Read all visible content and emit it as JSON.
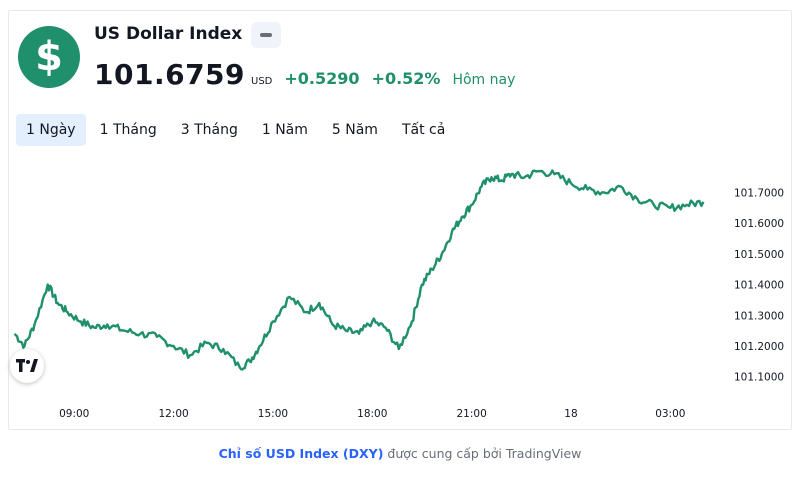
{
  "header": {
    "logo_symbol": "$",
    "logo_color": "#1f8f6c",
    "title": "US Dollar Index",
    "badge_icon": "minus-badge-icon",
    "price": "101.6759",
    "currency": "USD",
    "change_abs": "+0.5290",
    "change_pct": "+0.52%",
    "period_label": "Hôm nay",
    "positive_color": "#1f8f6c"
  },
  "tabs": [
    {
      "label": "1 Ngày",
      "active": true
    },
    {
      "label": "1 Tháng",
      "active": false
    },
    {
      "label": "3 Tháng",
      "active": false
    },
    {
      "label": "1 Năm",
      "active": false
    },
    {
      "label": "5 Năm",
      "active": false
    },
    {
      "label": "Tất cả",
      "active": false
    }
  ],
  "chart_data": {
    "type": "line",
    "line_color": "#1f8f6c",
    "x_ticks": [
      "09:00",
      "12:00",
      "15:00",
      "18:00",
      "21:00",
      "18",
      "03:00"
    ],
    "y_ticks": [
      "101.1000",
      "101.2000",
      "101.3000",
      "101.4000",
      "101.5000",
      "101.6000",
      "101.7000"
    ],
    "ylim": [
      101.1,
      101.7
    ],
    "x_hours": [
      7.2,
      7.5,
      7.8,
      8.2,
      8.5,
      8.8,
      9.2,
      9.6,
      10.0,
      10.5,
      11.0,
      11.5,
      12.0,
      12.5,
      13.0,
      13.5,
      14.0,
      14.3,
      14.6,
      15.0,
      15.5,
      16.0,
      16.4,
      16.8,
      17.2,
      17.6,
      18.0,
      18.4,
      18.8,
      19.2,
      19.5,
      19.8,
      20.1,
      20.4,
      20.7,
      21.0,
      21.3,
      21.6,
      21.9,
      22.2,
      22.6,
      23.0,
      23.5,
      24.0,
      24.5,
      25.0,
      25.5,
      26.0,
      26.5,
      27.0,
      27.5,
      28.0
    ],
    "values": [
      101.24,
      101.2,
      101.27,
      101.4,
      101.34,
      101.31,
      101.28,
      101.26,
      101.27,
      101.25,
      101.24,
      101.23,
      101.2,
      101.17,
      101.21,
      101.19,
      101.13,
      101.15,
      101.2,
      101.28,
      101.36,
      101.31,
      101.34,
      101.27,
      101.25,
      101.24,
      101.28,
      101.26,
      101.19,
      101.28,
      101.4,
      101.45,
      101.5,
      101.57,
      101.62,
      101.66,
      101.72,
      101.75,
      101.74,
      101.76,
      101.75,
      101.77,
      101.76,
      101.73,
      101.71,
      101.7,
      101.72,
      101.68,
      101.66,
      101.65,
      101.66,
      101.67
    ],
    "x_domain_hours": [
      7.0,
      28.5
    ]
  },
  "footer": {
    "link_text": "Chỉ số USD Index (DXY)",
    "suffix_text": "được cung cấp bởi TradingView"
  }
}
